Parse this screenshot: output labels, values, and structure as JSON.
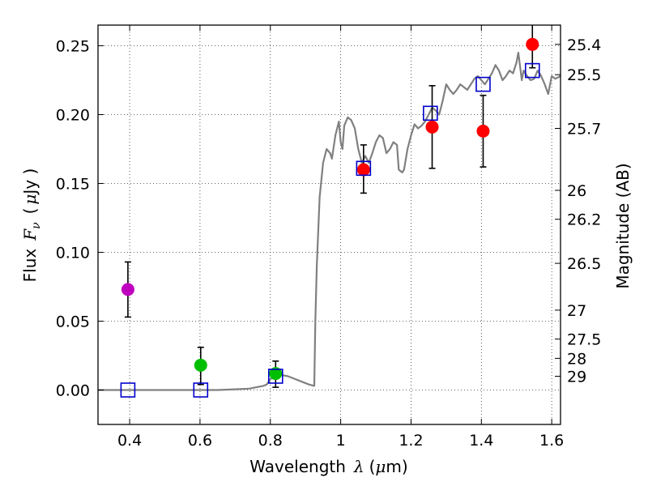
{
  "chart_data": {
    "type": "scatter",
    "xlabel": {
      "text": "Wavelength",
      "symbol": "λ",
      "unit_open": "(",
      "unit_mu": "μ",
      "unit_rest": "m)"
    },
    "ylabel": {
      "text": "Flux",
      "symbol": "F",
      "sub": "ν",
      "unit_open": "(",
      "unit_mu": "μ",
      "unit_rest": "Jy )"
    },
    "y2label": "Magnitude (AB)",
    "xlim": [
      0.31,
      1.625
    ],
    "ylim": [
      -0.025,
      0.265
    ],
    "grid": true,
    "x_ticks": [
      {
        "value": 0.4,
        "label": "0.4"
      },
      {
        "value": 0.6,
        "label": "0.6"
      },
      {
        "value": 0.8,
        "label": "0.8"
      },
      {
        "value": 1.0,
        "label": "1"
      },
      {
        "value": 1.2,
        "label": "1.2"
      },
      {
        "value": 1.4,
        "label": "1.4"
      },
      {
        "value": 1.6,
        "label": "1.6"
      }
    ],
    "y_ticks": [
      {
        "value": 0.0,
        "label": "0.00"
      },
      {
        "value": 0.05,
        "label": "0.05"
      },
      {
        "value": 0.1,
        "label": "0.10"
      },
      {
        "value": 0.15,
        "label": "0.15"
      },
      {
        "value": 0.2,
        "label": "0.20"
      },
      {
        "value": 0.25,
        "label": "0.25"
      }
    ],
    "mag_ticks": [
      {
        "value": 0.251,
        "label": "25.4"
      },
      {
        "value": 0.229,
        "label": "25.5"
      },
      {
        "value": 0.19,
        "label": "25.7"
      },
      {
        "value": 0.145,
        "label": "26"
      },
      {
        "value": 0.124,
        "label": "26.2"
      },
      {
        "value": 0.092,
        "label": "26.5"
      },
      {
        "value": 0.058,
        "label": "27"
      },
      {
        "value": 0.037,
        "label": "27.5"
      },
      {
        "value": 0.023,
        "label": "28"
      },
      {
        "value": 0.01,
        "label": "29"
      }
    ],
    "points": [
      {
        "x": 0.395,
        "y": 0.073,
        "yerr_low": 0.053,
        "yerr_high": 0.093,
        "color": "#bf00bf"
      },
      {
        "x": 0.602,
        "y": 0.018,
        "yerr_low": 0.004,
        "yerr_high": 0.031,
        "color": "#00bf00"
      },
      {
        "x": 0.815,
        "y": 0.012,
        "yerr_low": 0.002,
        "yerr_high": 0.021,
        "color": "#00bf00"
      },
      {
        "x": 1.065,
        "y": 0.16,
        "yerr_low": 0.143,
        "yerr_high": 0.178,
        "color": "#ff0000"
      },
      {
        "x": 1.26,
        "y": 0.191,
        "yerr_low": 0.161,
        "yerr_high": 0.221,
        "color": "#ff0000"
      },
      {
        "x": 1.405,
        "y": 0.188,
        "yerr_low": 0.162,
        "yerr_high": 0.214,
        "color": "#ff0000"
      },
      {
        "x": 1.545,
        "y": 0.251,
        "yerr_low": 0.234,
        "yerr_high": 0.268,
        "color": "#ff0000"
      }
    ],
    "model_points": [
      {
        "x": 0.395,
        "y": 0.0
      },
      {
        "x": 0.602,
        "y": 0.0
      },
      {
        "x": 0.815,
        "y": 0.01
      },
      {
        "x": 1.065,
        "y": 0.161
      },
      {
        "x": 1.255,
        "y": 0.201
      },
      {
        "x": 1.405,
        "y": 0.222
      },
      {
        "x": 1.545,
        "y": 0.232
      }
    ],
    "model_color": "#0000cc",
    "sed_color": "#808080",
    "sed": [
      [
        0.31,
        0.0
      ],
      [
        0.5,
        0.0
      ],
      [
        0.65,
        0.0
      ],
      [
        0.7,
        0.0005
      ],
      [
        0.74,
        0.001
      ],
      [
        0.76,
        0.002
      ],
      [
        0.78,
        0.003
      ],
      [
        0.79,
        0.004
      ],
      [
        0.8,
        0.008
      ],
      [
        0.81,
        0.009
      ],
      [
        0.83,
        0.011
      ],
      [
        0.85,
        0.01
      ],
      [
        0.87,
        0.008
      ],
      [
        0.89,
        0.006
      ],
      [
        0.91,
        0.004
      ],
      [
        0.925,
        0.003
      ],
      [
        0.928,
        0.05
      ],
      [
        0.932,
        0.09
      ],
      [
        0.94,
        0.14
      ],
      [
        0.95,
        0.165
      ],
      [
        0.96,
        0.175
      ],
      [
        0.97,
        0.172
      ],
      [
        0.975,
        0.168
      ],
      [
        0.985,
        0.185
      ],
      [
        0.995,
        0.195
      ],
      [
        1.0,
        0.18
      ],
      [
        1.005,
        0.175
      ],
      [
        1.01,
        0.192
      ],
      [
        1.02,
        0.198
      ],
      [
        1.03,
        0.196
      ],
      [
        1.04,
        0.19
      ],
      [
        1.05,
        0.175
      ],
      [
        1.06,
        0.165
      ],
      [
        1.07,
        0.17
      ],
      [
        1.08,
        0.165
      ],
      [
        1.09,
        0.172
      ],
      [
        1.1,
        0.18
      ],
      [
        1.11,
        0.185
      ],
      [
        1.12,
        0.183
      ],
      [
        1.13,
        0.172
      ],
      [
        1.14,
        0.175
      ],
      [
        1.15,
        0.18
      ],
      [
        1.16,
        0.178
      ],
      [
        1.165,
        0.16
      ],
      [
        1.175,
        0.158
      ],
      [
        1.18,
        0.16
      ],
      [
        1.19,
        0.175
      ],
      [
        1.2,
        0.185
      ],
      [
        1.21,
        0.193
      ],
      [
        1.22,
        0.19
      ],
      [
        1.23,
        0.192
      ],
      [
        1.24,
        0.195
      ],
      [
        1.25,
        0.2
      ],
      [
        1.26,
        0.205
      ],
      [
        1.27,
        0.203
      ],
      [
        1.28,
        0.2
      ],
      [
        1.29,
        0.21
      ],
      [
        1.3,
        0.222
      ],
      [
        1.31,
        0.218
      ],
      [
        1.32,
        0.215
      ],
      [
        1.33,
        0.218
      ],
      [
        1.34,
        0.222
      ],
      [
        1.35,
        0.22
      ],
      [
        1.36,
        0.218
      ],
      [
        1.37,
        0.222
      ],
      [
        1.38,
        0.226
      ],
      [
        1.39,
        0.228
      ],
      [
        1.4,
        0.225
      ],
      [
        1.41,
        0.222
      ],
      [
        1.42,
        0.226
      ],
      [
        1.43,
        0.23
      ],
      [
        1.44,
        0.236
      ],
      [
        1.45,
        0.232
      ],
      [
        1.46,
        0.225
      ],
      [
        1.47,
        0.228
      ],
      [
        1.48,
        0.232
      ],
      [
        1.49,
        0.23
      ],
      [
        1.5,
        0.238
      ],
      [
        1.505,
        0.245
      ],
      [
        1.51,
        0.235
      ],
      [
        1.515,
        0.225
      ],
      [
        1.52,
        0.232
      ],
      [
        1.53,
        0.228
      ],
      [
        1.54,
        0.225
      ],
      [
        1.55,
        0.226
      ],
      [
        1.56,
        0.232
      ],
      [
        1.57,
        0.228
      ],
      [
        1.58,
        0.222
      ],
      [
        1.59,
        0.215
      ],
      [
        1.6,
        0.228
      ],
      [
        1.61,
        0.226
      ],
      [
        1.625,
        0.228
      ]
    ]
  }
}
